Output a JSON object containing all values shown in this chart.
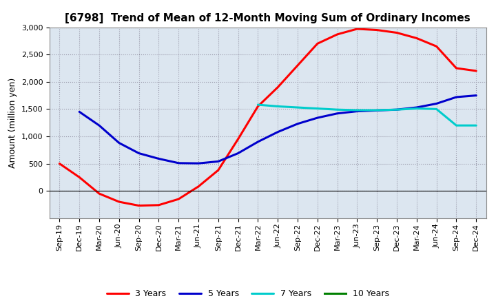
{
  "title": "[6798]  Trend of Mean of 12-Month Moving Sum of Ordinary Incomes",
  "ylabel": "Amount (million yen)",
  "ylim": [
    -500,
    3000
  ],
  "yticks": [
    0,
    500,
    1000,
    1500,
    2000,
    2500,
    3000
  ],
  "x_labels": [
    "Sep-19",
    "Dec-19",
    "Mar-20",
    "Jun-20",
    "Sep-20",
    "Dec-20",
    "Mar-21",
    "Jun-21",
    "Sep-21",
    "Dec-21",
    "Mar-22",
    "Jun-22",
    "Sep-22",
    "Dec-22",
    "Mar-23",
    "Jun-23",
    "Sep-23",
    "Dec-23",
    "Mar-24",
    "Jun-24",
    "Sep-24",
    "Dec-24"
  ],
  "series": {
    "3 Years": {
      "color": "#ff0000",
      "values": [
        500,
        250,
        -50,
        -200,
        -270,
        -260,
        -150,
        80,
        380,
        950,
        1550,
        1900,
        2300,
        2700,
        2870,
        2970,
        2950,
        2900,
        2800,
        2650,
        2250,
        2200
      ]
    },
    "5 Years": {
      "color": "#0000cc",
      "values": [
        null,
        1450,
        1200,
        880,
        690,
        590,
        510,
        505,
        540,
        690,
        900,
        1080,
        1230,
        1340,
        1420,
        1460,
        1475,
        1490,
        1530,
        1600,
        1720,
        1750
      ]
    },
    "7 Years": {
      "color": "#00cccc",
      "values": [
        null,
        null,
        null,
        null,
        null,
        null,
        null,
        null,
        null,
        null,
        1580,
        1550,
        1530,
        1510,
        1490,
        1480,
        1480,
        1490,
        1510,
        1500,
        1200,
        1200
      ]
    },
    "10 Years": {
      "color": "#008000",
      "values": [
        null,
        null,
        null,
        null,
        null,
        null,
        null,
        null,
        null,
        null,
        null,
        null,
        null,
        null,
        null,
        null,
        null,
        null,
        null,
        null,
        null,
        null
      ]
    }
  },
  "legend_order": [
    "3 Years",
    "5 Years",
    "7 Years",
    "10 Years"
  ],
  "background_color": "#ffffff",
  "plot_bg_color": "#dce6f0",
  "grid_color": "#9999aa",
  "title_fontsize": 11,
  "axis_fontsize": 9,
  "tick_fontsize": 8
}
